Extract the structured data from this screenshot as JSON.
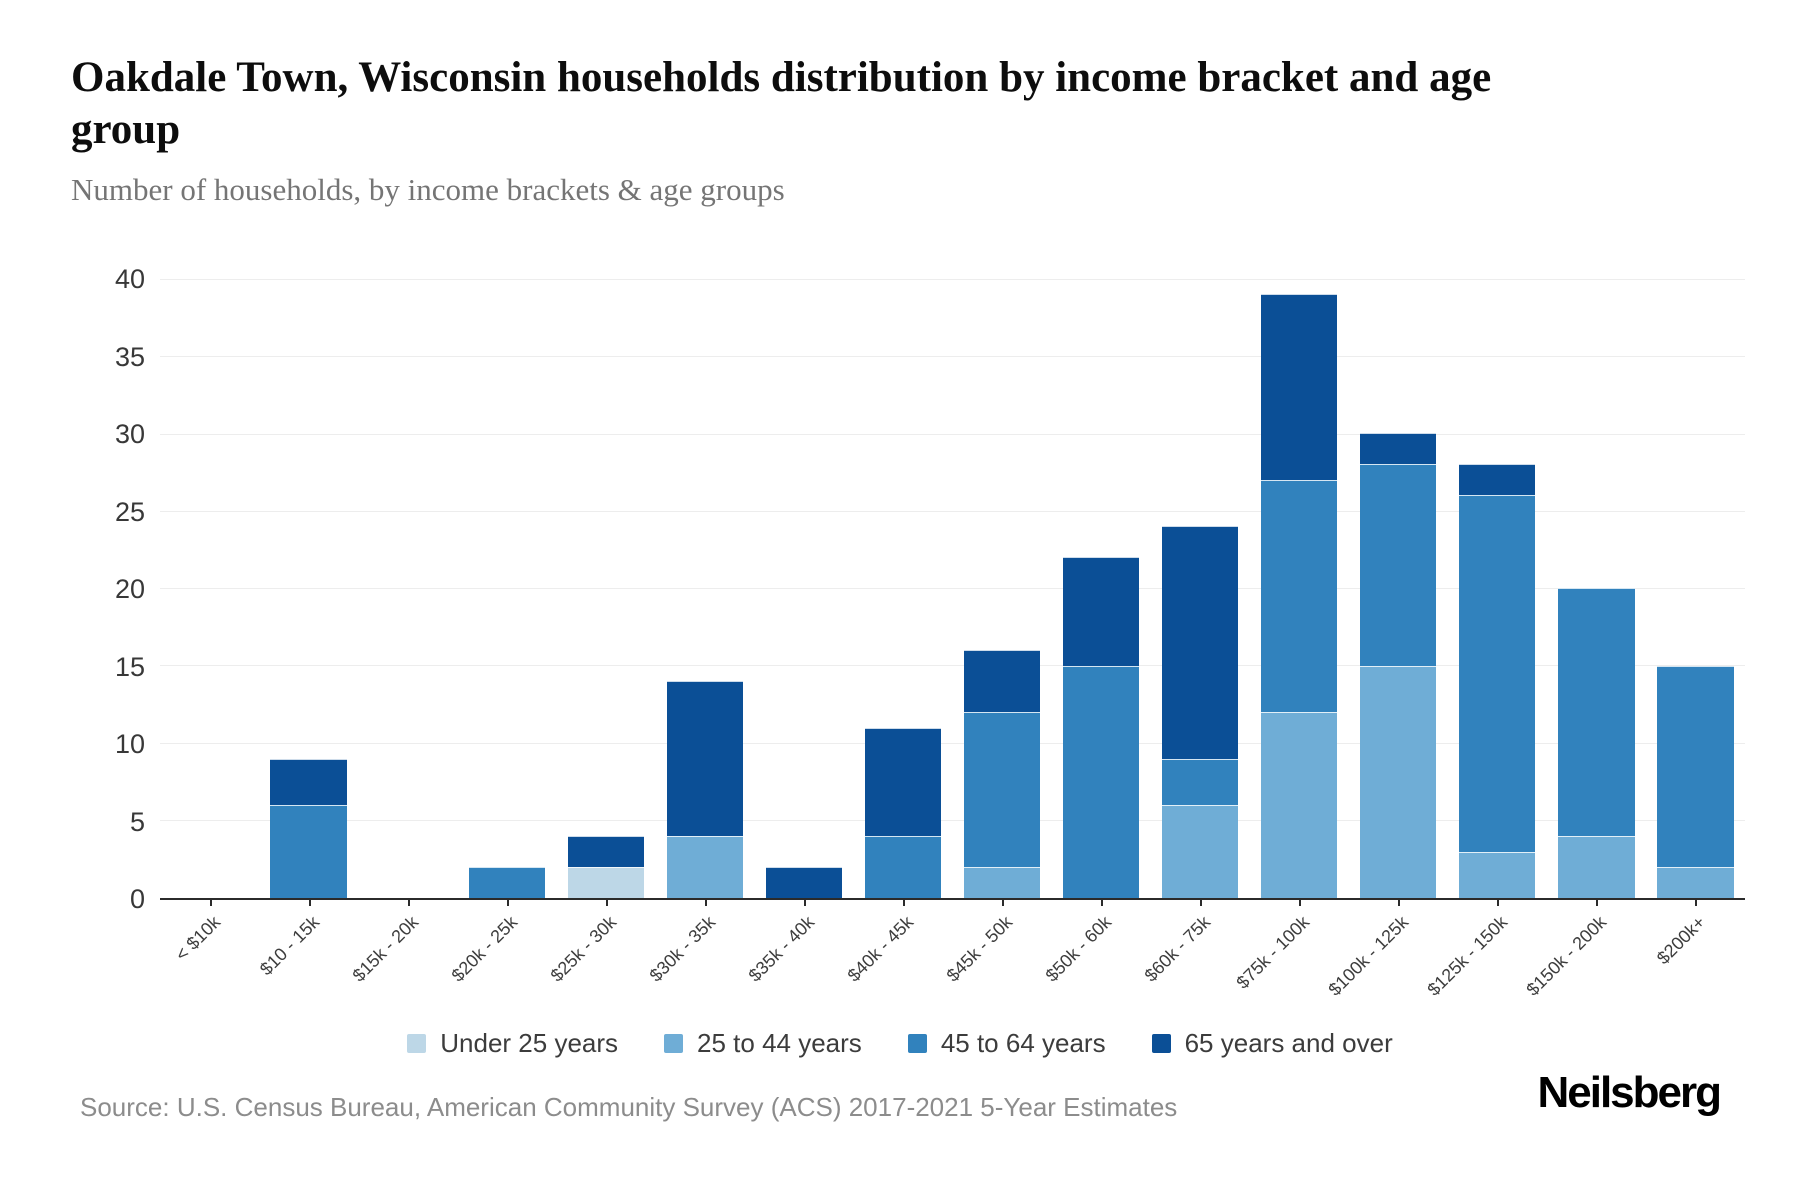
{
  "header": {
    "title": "Oakdale Town, Wisconsin households distribution by income bracket and age group",
    "subtitle": "Number of households, by income brackets & age groups"
  },
  "footer": {
    "source": "Source: U.S. Census Bureau, American Community Survey (ACS) 2017-2021 5-Year Estimates",
    "logo": "Neilsberg"
  },
  "colors": {
    "under_25": "#bdd7e7",
    "25_to_44": "#6fadd6",
    "45_to_64": "#3182bd",
    "65_and_over": "#0b4f96",
    "axis": "#2b2b2b",
    "grid": "#ededed"
  },
  "chart_data": {
    "type": "bar",
    "stacked": true,
    "title": "Oakdale Town, Wisconsin households distribution by income bracket and age group",
    "subtitle": "Number of households, by income brackets & age groups",
    "categories": [
      "< $10k",
      "$10 - 15k",
      "$15k - 20k",
      "$20k - 25k",
      "$25k - 30k",
      "$30k - 35k",
      "$35k - 40k",
      "$40k - 45k",
      "$45k - 50k",
      "$50k - 60k",
      "$60k - 75k",
      "$75k - 100k",
      "$100k - 125k",
      "$125k - 150k",
      "$150k - 200k",
      "$200k+"
    ],
    "series": [
      {
        "name": "Under 25 years",
        "color": "#bdd7e7",
        "values": [
          0,
          0,
          0,
          0,
          2,
          0,
          0,
          0,
          0,
          0,
          0,
          0,
          0,
          0,
          0,
          0
        ]
      },
      {
        "name": "25 to 44 years",
        "color": "#6fadd6",
        "values": [
          0,
          0,
          0,
          0,
          0,
          4,
          0,
          0,
          2,
          0,
          6,
          12,
          15,
          3,
          4,
          2
        ]
      },
      {
        "name": "45 to 64 years",
        "color": "#3182bd",
        "values": [
          0,
          6,
          0,
          2,
          0,
          0,
          0,
          4,
          10,
          15,
          3,
          15,
          13,
          23,
          16,
          13
        ]
      },
      {
        "name": "65 years and over",
        "color": "#0b4f96",
        "values": [
          0,
          3,
          0,
          0,
          2,
          10,
          2,
          7,
          4,
          7,
          15,
          12,
          2,
          2,
          0,
          0
        ]
      }
    ],
    "totals": [
      0,
      9,
      0,
      2,
      4,
      14,
      2,
      11,
      16,
      22,
      24,
      39,
      30,
      28,
      20,
      15
    ],
    "xlabel": "",
    "ylabel": "",
    "ylim": [
      0,
      40
    ],
    "yticks": [
      0,
      5,
      10,
      15,
      20,
      25,
      30,
      35,
      40
    ],
    "grid": "horizontal",
    "legend_position": "bottom"
  }
}
